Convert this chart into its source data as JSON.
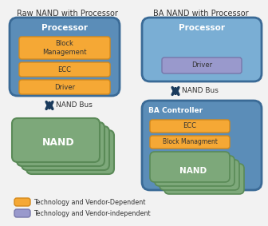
{
  "title_left": "Raw NAND with Processor",
  "title_right": "BA NAND with Processor",
  "orange": "#F5A835",
  "orange_border": "#D4891A",
  "blue_dark": "#3A6A96",
  "blue_mid": "#5B8DB8",
  "blue_light": "#7AAED4",
  "blue_proc_right": "#6A9FBF",
  "green": "#7DA87A",
  "green_border": "#5A8A57",
  "lavender": "#9999CC",
  "lavender_border": "#7777AA",
  "white": "#FFFFFF",
  "dark_text": "#333333",
  "arrow_color": "#1A3A5C",
  "legend_orange_label": "Technology and Vendor-Dependent",
  "legend_blue_label": "Technology and Vendor-independent",
  "bg_color": "#F2F2F2"
}
